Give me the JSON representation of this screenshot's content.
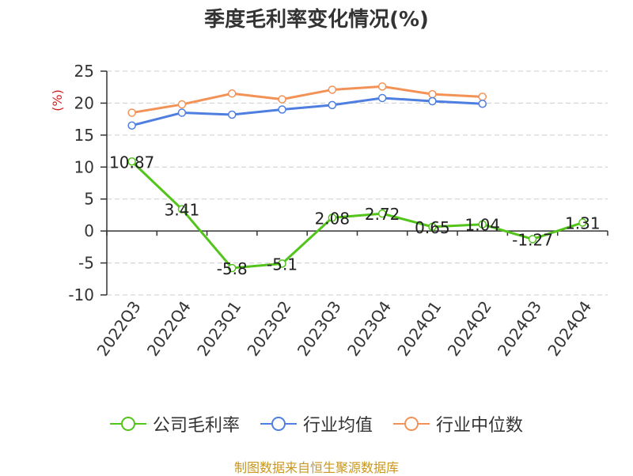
{
  "chart_data": {
    "type": "line",
    "title": "季度毛利率变化情况(%)",
    "ylabel": "(%)",
    "categories": [
      "2022Q3",
      "2022Q4",
      "2023Q1",
      "2023Q2",
      "2023Q3",
      "2023Q4",
      "2024Q1",
      "2024Q2",
      "2024Q3",
      "2024Q4"
    ],
    "ylim": [
      -10,
      25
    ],
    "yticks": [
      25,
      20,
      15,
      10,
      5,
      0,
      -5,
      -10
    ],
    "grid": true,
    "legend_position": "bottom",
    "series": [
      {
        "name": "公司毛利率",
        "color": "#52c41a",
        "values": [
          10.87,
          3.41,
          -5.8,
          -5.1,
          2.08,
          2.72,
          0.65,
          1.04,
          -1.27,
          1.31
        ],
        "labels": [
          "10.87",
          "3.41",
          "-5.8",
          "-5.1",
          "2.08",
          "2.72",
          "0.65",
          "1.04",
          "-1.27",
          "1.31"
        ]
      },
      {
        "name": "行业均值",
        "color": "#4e7fe0",
        "values": [
          16.5,
          18.5,
          18.2,
          19.0,
          19.7,
          20.8,
          20.3,
          19.9,
          null,
          null
        ]
      },
      {
        "name": "行业中位数",
        "color": "#f39257",
        "values": [
          18.5,
          19.8,
          21.5,
          20.6,
          22.1,
          22.6,
          21.4,
          21.0,
          null,
          null
        ]
      }
    ]
  },
  "source_note": "制图数据来自恒生聚源数据库"
}
